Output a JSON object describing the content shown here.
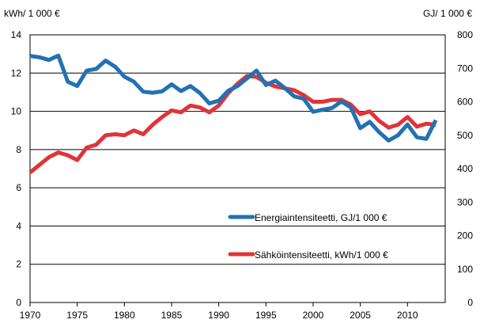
{
  "chart_data": {
    "type": "line",
    "title": "",
    "x": [
      1970,
      1971,
      1972,
      1973,
      1974,
      1975,
      1976,
      1977,
      1978,
      1979,
      1980,
      1981,
      1982,
      1983,
      1984,
      1985,
      1986,
      1987,
      1988,
      1989,
      1990,
      1991,
      1992,
      1993,
      1994,
      1995,
      1996,
      1997,
      1998,
      1999,
      2000,
      2001,
      2002,
      2003,
      2004,
      2005,
      2006,
      2007,
      2008,
      2009,
      2010,
      2011,
      2012,
      2013
    ],
    "xlim": [
      1970,
      2014
    ],
    "xticks": [
      1970,
      1975,
      1980,
      1985,
      1990,
      1995,
      2000,
      2005,
      2010
    ],
    "y_left": {
      "label": "kWh/ 1 000 €",
      "lim": [
        0,
        14
      ],
      "ticks": [
        0,
        2,
        4,
        6,
        8,
        10,
        12,
        14
      ]
    },
    "y_right": {
      "label": "GJ/ 1 000 €",
      "lim": [
        0,
        800
      ],
      "ticks": [
        0,
        100,
        200,
        300,
        400,
        500,
        600,
        700,
        800
      ]
    },
    "grid": "horizontal",
    "legend_position": "lower-right",
    "series": [
      {
        "name": "Energiaintensiteetti, GJ/1 000 €",
        "axis": "right",
        "color": "#2271b3",
        "values": [
          737,
          733,
          725,
          738,
          660,
          647,
          693,
          698,
          723,
          705,
          675,
          660,
          630,
          627,
          631,
          652,
          632,
          647,
          626,
          595,
          603,
          633,
          647,
          670,
          693,
          650,
          663,
          641,
          616,
          609,
          570,
          576,
          581,
          601,
          583,
          521,
          540,
          509,
          484,
          500,
          532,
          494,
          489,
          545
        ]
      },
      {
        "name": "Sähköintensiteetti, kWh/1 000 €",
        "axis": "left",
        "color": "#e0343a",
        "values": [
          6.8,
          7.2,
          7.6,
          7.85,
          7.7,
          7.45,
          8.1,
          8.25,
          8.75,
          8.8,
          8.75,
          9.0,
          8.8,
          9.3,
          9.7,
          10.05,
          9.95,
          10.3,
          10.2,
          9.95,
          10.3,
          10.95,
          11.45,
          11.85,
          11.8,
          11.5,
          11.3,
          11.2,
          11.1,
          10.85,
          10.5,
          10.5,
          10.6,
          10.6,
          10.35,
          9.85,
          10.0,
          9.5,
          9.15,
          9.3,
          9.7,
          9.2,
          9.35,
          9.3
        ]
      }
    ]
  }
}
